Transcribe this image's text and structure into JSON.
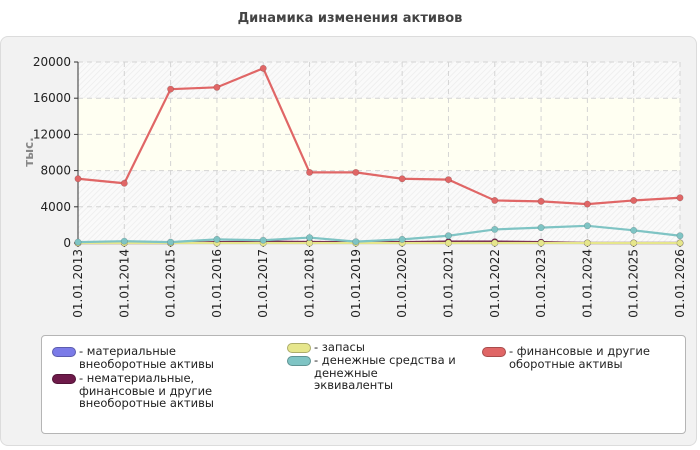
{
  "chart_data": {
    "type": "line",
    "title": "Динамика изменения активов",
    "ylabel": "тыс.",
    "xlabel": "",
    "ylim": [
      0,
      20000
    ],
    "yticks": [
      0,
      4000,
      8000,
      12000,
      16000,
      20000
    ],
    "grid": true,
    "legend_position": "bottom",
    "categories": [
      "01.01.2013",
      "01.01.2014",
      "01.01.2015",
      "01.01.2016",
      "01.01.2017",
      "01.01.2018",
      "01.01.2019",
      "01.01.2020",
      "01.01.2021",
      "01.01.2022",
      "01.01.2023",
      "01.01.2024",
      "01.01.2025",
      "01.01.2026"
    ],
    "series": [
      {
        "name": "материальные внеоборотные активы",
        "color": "#7b7be8",
        "values": [
          0,
          0,
          0,
          0,
          0,
          0,
          0,
          0,
          0,
          0,
          0,
          0,
          0,
          0
        ]
      },
      {
        "name": "нематериальные, финансовые и другие внеоборотные активы",
        "color": "#6e1a4a",
        "values": [
          0,
          0,
          0,
          100,
          150,
          120,
          100,
          100,
          150,
          150,
          100,
          0,
          0,
          0
        ]
      },
      {
        "name": "запасы",
        "color": "#e6e68c",
        "values": [
          0,
          0,
          0,
          0,
          0,
          0,
          0,
          0,
          0,
          0,
          0,
          0,
          0,
          0
        ]
      },
      {
        "name": "денежные средства и денежные эквиваленты",
        "color": "#7fc4c4",
        "values": [
          100,
          200,
          100,
          400,
          300,
          600,
          150,
          400,
          800,
          1500,
          1700,
          1900,
          1400,
          800
        ]
      },
      {
        "name": "финансовые и другие оборотные активы",
        "color": "#e06666",
        "values": [
          7100,
          6600,
          17000,
          17200,
          19300,
          7800,
          7800,
          7100,
          7000,
          4700,
          4600,
          4300,
          4700,
          5000
        ]
      }
    ]
  }
}
